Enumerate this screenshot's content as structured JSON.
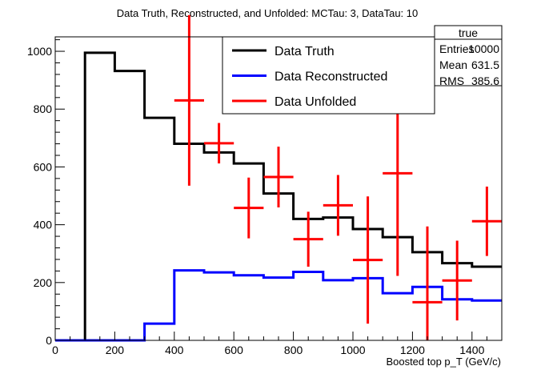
{
  "chart_data": {
    "type": "line",
    "title": "Data Truth, Reconstructed, and Unfolded: MCTau: 3, DataTau: 10",
    "xlabel": "Boosted top p_T (GeV/c)",
    "ylabel": "",
    "xlim": [
      0,
      1500
    ],
    "ylim": [
      0,
      1050
    ],
    "x_ticks": [
      0,
      200,
      400,
      600,
      800,
      1000,
      1200,
      1400
    ],
    "y_ticks": [
      0,
      200,
      400,
      600,
      800,
      1000
    ],
    "bin_edges": [
      0,
      100,
      200,
      300,
      400,
      500,
      600,
      700,
      800,
      900,
      1000,
      1100,
      1200,
      1300,
      1400,
      1500
    ],
    "series": [
      {
        "name": "Data Truth",
        "style": "histogram",
        "color": "#000000",
        "values": [
          0,
          995,
          932,
          770,
          680,
          650,
          612,
          508,
          420,
          425,
          385,
          357,
          305,
          267,
          255
        ]
      },
      {
        "name": "Data Reconstructed",
        "style": "histogram",
        "color": "#0000ff",
        "values": [
          0,
          0,
          0,
          58,
          242,
          235,
          225,
          217,
          237,
          208,
          215,
          163,
          185,
          142,
          138
        ]
      },
      {
        "name": "Data Unfolded",
        "style": "errorbars",
        "color": "#ff0000",
        "points": [
          {
            "x": 450,
            "y": 830,
            "err": 295
          },
          {
            "x": 550,
            "y": 682,
            "err": 70
          },
          {
            "x": 650,
            "y": 458,
            "err": 105
          },
          {
            "x": 750,
            "y": 565,
            "err": 105
          },
          {
            "x": 850,
            "y": 350,
            "err": 95
          },
          {
            "x": 950,
            "y": 467,
            "err": 105
          },
          {
            "x": 1050,
            "y": 278,
            "err": 220
          },
          {
            "x": 1150,
            "y": 578,
            "err": 355
          },
          {
            "x": 1250,
            "y": 132,
            "err": 262
          },
          {
            "x": 1350,
            "y": 207,
            "err": 138
          },
          {
            "x": 1450,
            "y": 412,
            "err": 120
          }
        ]
      }
    ],
    "legend_position": "top-right",
    "stats_box": {
      "title": "true",
      "rows": [
        {
          "label": "Entries",
          "value": "10000"
        },
        {
          "label": "Mean",
          "value": "631.5"
        },
        {
          "label": "RMS",
          "value": "385.6"
        }
      ]
    }
  }
}
